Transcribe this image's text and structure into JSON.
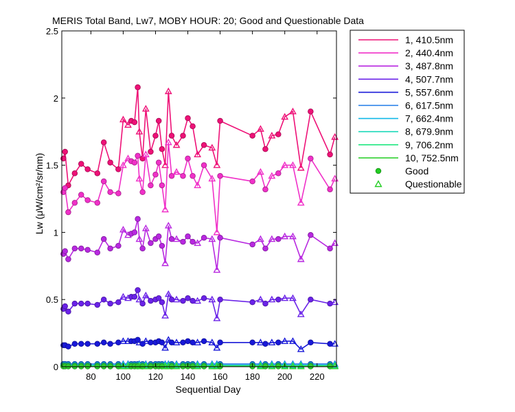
{
  "chart_data": {
    "type": "line",
    "title": "MERIS Total Band,  Lw7, MOBY HOUR: 20;  Good and Questionable Data",
    "xlabel": "Sequential Day",
    "ylabel": "Lw (μW/cm²/sr/nm)",
    "xlim": [
      62,
      232
    ],
    "ylim": [
      0,
      2.5
    ],
    "xticks": [
      80,
      100,
      120,
      140,
      160,
      180,
      200,
      220
    ],
    "yticks": [
      0,
      0.5,
      1,
      1.5,
      2,
      2.5
    ],
    "ytick_labels": [
      "0",
      "0.5",
      "1",
      "1.5",
      "2",
      "2.5"
    ],
    "grid": false,
    "legend_position": "outside-top-right",
    "marker_legend": [
      {
        "label": "Good",
        "marker": "circle",
        "color": "#22cc22"
      },
      {
        "label": "Questionable",
        "marker": "triangle",
        "color": "#22cc22"
      }
    ],
    "x": [
      63,
      64,
      66,
      70,
      74,
      78,
      84,
      88,
      92,
      97,
      100,
      103,
      105,
      107,
      109,
      110,
      112,
      114,
      117,
      120,
      122,
      124,
      126,
      128,
      130,
      133,
      137,
      140,
      143,
      146,
      150,
      155,
      158,
      160,
      180,
      185,
      188,
      192,
      196,
      200,
      205,
      210,
      216,
      228,
      231
    ],
    "questionable": [
      false,
      false,
      false,
      false,
      false,
      false,
      false,
      false,
      false,
      false,
      true,
      true,
      false,
      false,
      false,
      true,
      false,
      true,
      false,
      false,
      false,
      false,
      true,
      true,
      false,
      true,
      false,
      false,
      false,
      true,
      false,
      true,
      true,
      false,
      false,
      true,
      false,
      true,
      false,
      true,
      true,
      true,
      false,
      false,
      true
    ],
    "series": [
      {
        "name": "1, 410.5nm",
        "color": "#ee1177",
        "values": [
          1.55,
          1.6,
          1.35,
          1.44,
          1.51,
          1.47,
          1.44,
          1.67,
          1.52,
          1.47,
          1.84,
          1.8,
          1.83,
          1.82,
          2.08,
          1.75,
          1.55,
          1.92,
          1.6,
          1.72,
          1.83,
          1.62,
          1.5,
          2.05,
          1.72,
          1.65,
          1.72,
          1.85,
          1.79,
          1.58,
          1.65,
          1.63,
          1.5,
          1.83,
          1.72,
          1.77,
          1.62,
          1.72,
          1.73,
          1.86,
          1.9,
          1.48,
          1.9,
          1.58,
          1.71
        ]
      },
      {
        "name": "2, 440.4nm",
        "color": "#f030c8",
        "values": [
          1.3,
          1.33,
          1.15,
          1.22,
          1.28,
          1.24,
          1.22,
          1.38,
          1.3,
          1.29,
          1.5,
          1.55,
          1.53,
          1.52,
          1.57,
          1.4,
          1.3,
          1.58,
          1.35,
          1.43,
          1.52,
          1.35,
          1.17,
          1.67,
          1.42,
          1.45,
          1.42,
          1.55,
          1.42,
          1.35,
          1.5,
          1.4,
          1.0,
          1.42,
          1.38,
          1.45,
          1.32,
          1.42,
          1.44,
          1.5,
          1.5,
          1.22,
          1.55,
          1.32,
          1.4
        ]
      },
      {
        "name": "3, 487.8nm",
        "color": "#b828e0",
        "values": [
          0.84,
          0.86,
          0.8,
          0.88,
          0.88,
          0.87,
          0.85,
          0.95,
          0.88,
          0.9,
          1.02,
          0.98,
          0.99,
          1.0,
          1.1,
          0.95,
          0.88,
          1.03,
          0.92,
          0.95,
          0.97,
          0.9,
          0.77,
          1.05,
          0.95,
          0.95,
          0.93,
          0.97,
          0.93,
          0.92,
          0.96,
          0.95,
          0.72,
          0.96,
          0.91,
          0.95,
          0.88,
          0.95,
          0.95,
          0.97,
          0.97,
          0.8,
          0.98,
          0.88,
          0.92
        ]
      },
      {
        "name": "4, 507.7nm",
        "color": "#6a22e8",
        "values": [
          0.43,
          0.45,
          0.41,
          0.47,
          0.47,
          0.47,
          0.46,
          0.5,
          0.47,
          0.48,
          0.52,
          0.51,
          0.52,
          0.52,
          0.57,
          0.5,
          0.47,
          0.53,
          0.49,
          0.5,
          0.51,
          0.48,
          0.38,
          0.54,
          0.5,
          0.5,
          0.49,
          0.51,
          0.49,
          0.49,
          0.51,
          0.5,
          0.36,
          0.5,
          0.48,
          0.5,
          0.47,
          0.5,
          0.5,
          0.51,
          0.51,
          0.39,
          0.5,
          0.47,
          0.48
        ]
      },
      {
        "name": "5, 557.6nm",
        "color": "#1818d8",
        "values": [
          0.16,
          0.16,
          0.15,
          0.17,
          0.17,
          0.17,
          0.17,
          0.18,
          0.17,
          0.18,
          0.19,
          0.19,
          0.19,
          0.19,
          0.2,
          0.18,
          0.17,
          0.19,
          0.18,
          0.18,
          0.19,
          0.18,
          0.14,
          0.2,
          0.18,
          0.18,
          0.18,
          0.19,
          0.18,
          0.18,
          0.19,
          0.18,
          0.14,
          0.18,
          0.18,
          0.18,
          0.17,
          0.18,
          0.18,
          0.19,
          0.19,
          0.13,
          0.18,
          0.17,
          0.17
        ]
      },
      {
        "name": "6, 617.5nm",
        "color": "#1c78e8",
        "values": [
          0.02,
          0.02,
          0.02,
          0.02,
          0.02,
          0.02,
          0.02,
          0.02,
          0.02,
          0.02,
          0.02,
          0.02,
          0.02,
          0.02,
          0.02,
          0.02,
          0.02,
          0.02,
          0.02,
          0.02,
          0.02,
          0.02,
          0.02,
          0.02,
          0.02,
          0.02,
          0.02,
          0.02,
          0.02,
          0.02,
          0.02,
          0.02,
          0.02,
          0.02,
          0.02,
          0.02,
          0.02,
          0.02,
          0.02,
          0.02,
          0.02,
          0.02,
          0.02,
          0.02,
          0.02
        ]
      },
      {
        "name": "7, 662.4nm",
        "color": "#10b8e8",
        "values": [
          0.01,
          0.01,
          0.01,
          0.01,
          0.01,
          0.01,
          0.01,
          0.01,
          0.01,
          0.01,
          0.01,
          0.01,
          0.01,
          0.01,
          0.01,
          0.01,
          0.01,
          0.01,
          0.01,
          0.01,
          0.01,
          0.01,
          0.01,
          0.01,
          0.01,
          0.01,
          0.01,
          0.01,
          0.01,
          0.01,
          0.01,
          0.01,
          0.01,
          0.01,
          0.01,
          0.01,
          0.01,
          0.01,
          0.01,
          0.01,
          0.01,
          0.01,
          0.01,
          0.01,
          0.01
        ]
      },
      {
        "name": "8, 679.9nm",
        "color": "#18d8b8",
        "values": [
          0.01,
          0.01,
          0.01,
          0.01,
          0.01,
          0.01,
          0.01,
          0.01,
          0.01,
          0.01,
          0.01,
          0.01,
          0.01,
          0.01,
          0.01,
          0.01,
          0.01,
          0.01,
          0.01,
          0.01,
          0.01,
          0.01,
          0.01,
          0.01,
          0.01,
          0.01,
          0.01,
          0.01,
          0.01,
          0.01,
          0.01,
          0.01,
          0.01,
          0.01,
          0.01,
          0.01,
          0.01,
          0.01,
          0.01,
          0.01,
          0.01,
          0.01,
          0.01,
          0.01,
          0.01
        ]
      },
      {
        "name": "9, 706.2nm",
        "color": "#20e880",
        "values": [
          0.005,
          0.005,
          0.005,
          0.005,
          0.005,
          0.005,
          0.005,
          0.005,
          0.005,
          0.005,
          0.005,
          0.005,
          0.005,
          0.005,
          0.005,
          0.005,
          0.005,
          0.005,
          0.005,
          0.005,
          0.005,
          0.005,
          0.005,
          0.005,
          0.005,
          0.005,
          0.005,
          0.005,
          0.005,
          0.005,
          0.005,
          0.005,
          0.005,
          0.005,
          0.005,
          0.005,
          0.005,
          0.005,
          0.005,
          0.005,
          0.005,
          0.005,
          0.005,
          0.005,
          0.005
        ]
      },
      {
        "name": "10, 752.5nm",
        "color": "#30d030",
        "values": [
          0.002,
          0.002,
          0.002,
          0.002,
          0.002,
          0.002,
          0.002,
          0.002,
          0.002,
          0.002,
          0.002,
          0.002,
          0.002,
          0.002,
          0.002,
          0.002,
          0.002,
          0.002,
          0.002,
          0.002,
          0.002,
          0.002,
          0.002,
          0.002,
          0.002,
          0.002,
          0.002,
          0.002,
          0.002,
          0.002,
          0.002,
          0.002,
          0.002,
          0.002,
          0.002,
          0.002,
          0.002,
          0.002,
          0.002,
          0.002,
          0.002,
          0.002,
          0.002,
          0.002,
          0.002
        ]
      }
    ]
  }
}
